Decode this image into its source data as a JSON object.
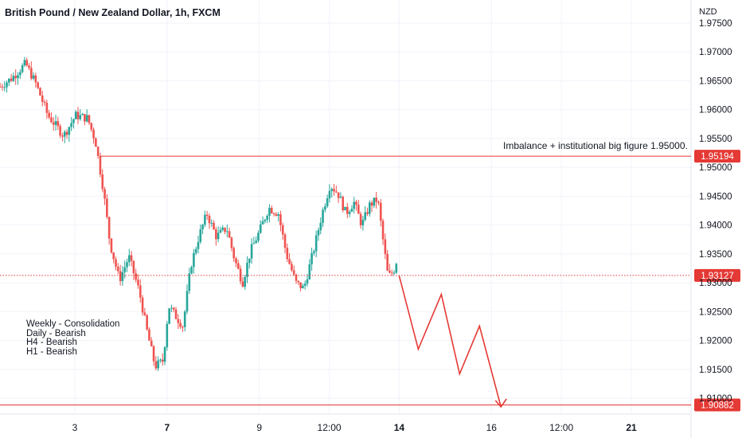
{
  "header": {
    "title": "British Pound / New Zealand Dollar, 1h, FXCM",
    "currency": "NZD"
  },
  "notes": [
    "Weekly - Consolidation",
    "Daily - Bearish",
    "H4 - Bearish",
    "H1 - Bearish"
  ],
  "annotation": "Imbalance + institutional big figure 1.95000.",
  "chart_data": {
    "type": "candlestick",
    "symbol": "GBPNZD",
    "timeframe": "1h",
    "ylim": [
      1.9065,
      1.9765
    ],
    "price_ticks": [
      "1.97500",
      "1.97000",
      "1.96500",
      "1.96000",
      "1.95500",
      "1.95000",
      "1.94500",
      "1.94000",
      "1.93500",
      "1.93000",
      "1.92500",
      "1.92000",
      "1.91500",
      "1.91000"
    ],
    "time_ticks": [
      {
        "label": "3",
        "bold": false,
        "t": 0.94
      },
      {
        "label": "7",
        "bold": true,
        "t": 2.1
      },
      {
        "label": "9",
        "bold": false,
        "t": 3.26
      },
      {
        "label": "12:00",
        "bold": false,
        "t": 4.14
      },
      {
        "label": "14",
        "bold": true,
        "t": 5.02
      },
      {
        "label": "16",
        "bold": false,
        "t": 6.18
      },
      {
        "label": "12:00",
        "bold": false,
        "t": 7.06
      },
      {
        "label": "21",
        "bold": true,
        "t": 7.94
      }
    ],
    "horizontal_levels": [
      {
        "price": 1.95194,
        "label": "1.95194",
        "style": "solid",
        "color": "#e53935"
      },
      {
        "price": 1.93127,
        "label": "1.93127",
        "style": "dotted",
        "color": "#e53935"
      },
      {
        "price": 1.90882,
        "label": "1.90882",
        "style": "solid",
        "color": "#e53935"
      }
    ],
    "projection_path": [
      {
        "t": 5.02,
        "price": 1.9312
      },
      {
        "t": 5.26,
        "price": 1.9185
      },
      {
        "t": 5.55,
        "price": 1.928
      },
      {
        "t": 5.78,
        "price": 1.9142
      },
      {
        "t": 6.03,
        "price": 1.9225
      },
      {
        "t": 6.3,
        "price": 1.9085
      }
    ],
    "close_path": [
      {
        "t": 0.0,
        "price": 1.964
      },
      {
        "t": 0.15,
        "price": 1.9655
      },
      {
        "t": 0.32,
        "price": 1.968
      },
      {
        "t": 0.45,
        "price": 1.9645
      },
      {
        "t": 0.6,
        "price": 1.959
      },
      {
        "t": 0.8,
        "price": 1.9555
      },
      {
        "t": 0.95,
        "price": 1.959
      },
      {
        "t": 1.1,
        "price": 1.9585
      },
      {
        "t": 1.2,
        "price": 1.9545
      },
      {
        "t": 1.3,
        "price": 1.946
      },
      {
        "t": 1.38,
        "price": 1.937
      },
      {
        "t": 1.5,
        "price": 1.9305
      },
      {
        "t": 1.62,
        "price": 1.9345
      },
      {
        "t": 1.75,
        "price": 1.9285
      },
      {
        "t": 1.85,
        "price": 1.9215
      },
      {
        "t": 1.95,
        "price": 1.9155
      },
      {
        "t": 2.05,
        "price": 1.9165
      },
      {
        "t": 2.12,
        "price": 1.926
      },
      {
        "t": 2.22,
        "price": 1.924
      },
      {
        "t": 2.3,
        "price": 1.9225
      },
      {
        "t": 2.4,
        "price": 1.933
      },
      {
        "t": 2.5,
        "price": 1.938
      },
      {
        "t": 2.6,
        "price": 1.942
      },
      {
        "t": 2.72,
        "price": 1.938
      },
      {
        "t": 2.85,
        "price": 1.9395
      },
      {
        "t": 2.95,
        "price": 1.934
      },
      {
        "t": 3.05,
        "price": 1.93
      },
      {
        "t": 3.15,
        "price": 1.9355
      },
      {
        "t": 3.25,
        "price": 1.9385
      },
      {
        "t": 3.38,
        "price": 1.943
      },
      {
        "t": 3.5,
        "price": 1.942
      },
      {
        "t": 3.6,
        "price": 1.935
      },
      {
        "t": 3.72,
        "price": 1.93
      },
      {
        "t": 3.82,
        "price": 1.929
      },
      {
        "t": 3.95,
        "price": 1.936
      },
      {
        "t": 4.05,
        "price": 1.942
      },
      {
        "t": 4.15,
        "price": 1.947
      },
      {
        "t": 4.25,
        "price": 1.9455
      },
      {
        "t": 4.35,
        "price": 1.942
      },
      {
        "t": 4.45,
        "price": 1.944
      },
      {
        "t": 4.55,
        "price": 1.94
      },
      {
        "t": 4.65,
        "price": 1.9435
      },
      {
        "t": 4.75,
        "price": 1.9445
      },
      {
        "t": 4.82,
        "price": 1.937
      },
      {
        "t": 4.88,
        "price": 1.931
      },
      {
        "t": 4.95,
        "price": 1.932
      },
      {
        "t": 5.0,
        "price": 1.9345
      }
    ]
  },
  "colors": {
    "up": "#26a69a",
    "down": "#ef5350",
    "level": "#e53935",
    "grid": "#f0f3fa",
    "text": "#131722",
    "price_label_bg": "#e53935",
    "price_label_text": "#ffffff"
  }
}
